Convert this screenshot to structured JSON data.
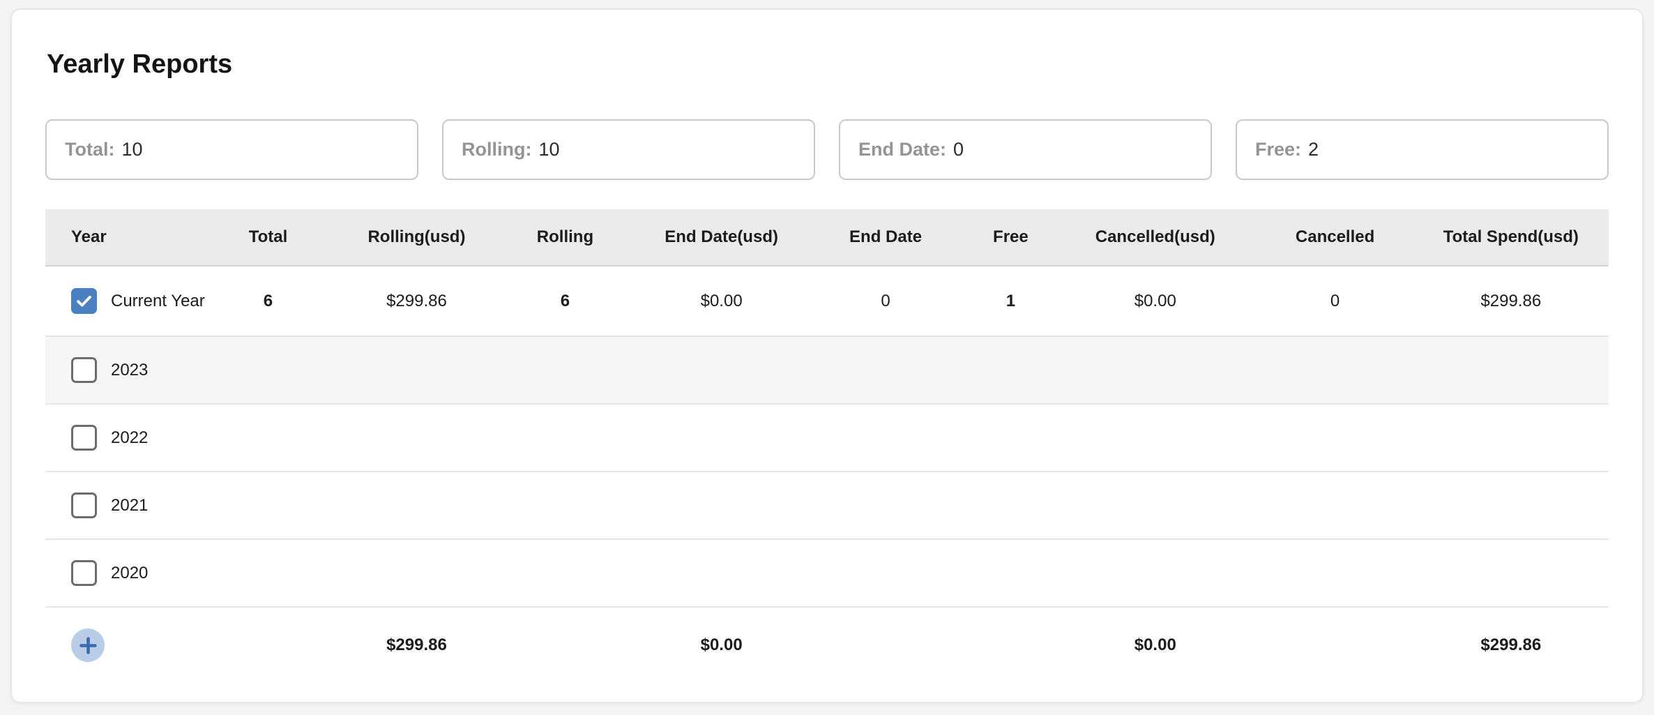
{
  "title": "Yearly Reports",
  "summary_boxes": [
    {
      "key": "total",
      "label": "Total:",
      "value": "10"
    },
    {
      "key": "rolling",
      "label": "Rolling:",
      "value": "10"
    },
    {
      "key": "end_date",
      "label": "End Date:",
      "value": "0"
    },
    {
      "key": "free",
      "label": "Free:",
      "value": "2"
    }
  ],
  "table": {
    "columns": [
      {
        "key": "year",
        "label": "Year"
      },
      {
        "key": "total",
        "label": "Total"
      },
      {
        "key": "rolling_usd",
        "label": "Rolling(usd)"
      },
      {
        "key": "rolling",
        "label": "Rolling"
      },
      {
        "key": "end_date_usd",
        "label": "End Date(usd)"
      },
      {
        "key": "end_date",
        "label": "End Date"
      },
      {
        "key": "free",
        "label": "Free"
      },
      {
        "key": "cancelled_usd",
        "label": "Cancelled(usd)"
      },
      {
        "key": "cancelled",
        "label": "Cancelled"
      },
      {
        "key": "total_spend_usd",
        "label": "Total Spend(usd)"
      }
    ],
    "rows": [
      {
        "year_label": "Current Year",
        "checked": true,
        "highlighted": false,
        "cells": {
          "total": "6",
          "rolling_usd": "$299.86",
          "rolling": "6",
          "end_date_usd": "$0.00",
          "end_date": "0",
          "free": "1",
          "cancelled_usd": "$0.00",
          "cancelled": "0",
          "total_spend_usd": "$299.86"
        }
      },
      {
        "year_label": "2023",
        "checked": false,
        "highlighted": true,
        "cells": {}
      },
      {
        "year_label": "2022",
        "checked": false,
        "highlighted": false,
        "cells": {}
      },
      {
        "year_label": "2021",
        "checked": false,
        "highlighted": false,
        "cells": {}
      },
      {
        "year_label": "2020",
        "checked": false,
        "highlighted": false,
        "cells": {}
      }
    ],
    "footer": {
      "add_button_label": "+",
      "totals": {
        "rolling_usd": "$299.86",
        "end_date_usd": "$0.00",
        "cancelled_usd": "$0.00",
        "total_spend_usd": "$299.86"
      }
    }
  },
  "colors": {
    "checkbox_checked": "#4a7fc1",
    "add_button_bg": "#b9cde8",
    "add_button_plus": "#3a6cae",
    "header_bg": "#ebebeb",
    "highlight_row_bg": "#f6f6f6"
  }
}
